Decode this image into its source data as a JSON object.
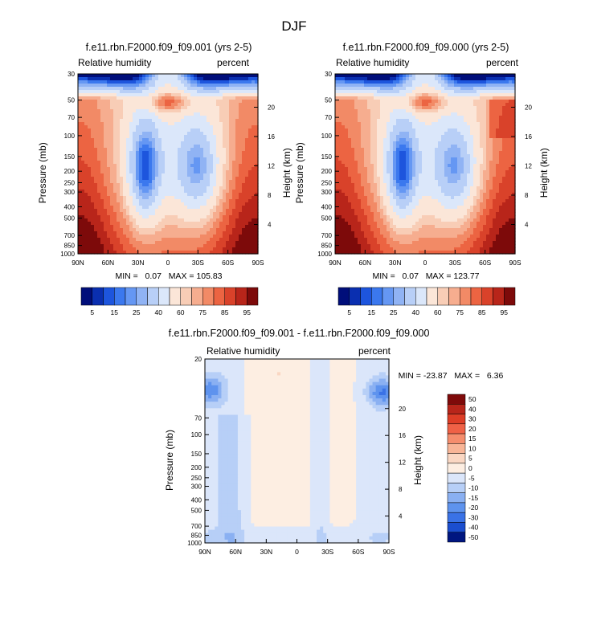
{
  "title": "DJF",
  "chart_data": [
    {
      "type": "heatmap",
      "title": "f.e11.rbn.F2000.f09_f09.001 (yrs 2-5)",
      "left_label": "Relative humidity",
      "right_label": "percent",
      "ylabel": "Pressure (mb)",
      "ylabel_right": "Height (km)",
      "x_ticks": [
        "90N",
        "60N",
        "30N",
        "0",
        "30S",
        "60S",
        "90S"
      ],
      "y_ticks": [
        "30",
        "50",
        "70",
        "100",
        "150",
        "200",
        "250",
        "300",
        "400",
        "500",
        "700",
        "850",
        "1000"
      ],
      "height_ticks": [
        "20",
        "16",
        "12",
        "8",
        "4"
      ],
      "y_scale": "log",
      "ylim": [
        1000,
        30
      ],
      "stats": "MIN =   0.07   MAX = 105.83",
      "colorbar_labels": [
        "5",
        "15",
        "25",
        "40",
        "60",
        "75",
        "85",
        "95"
      ],
      "colorbar_levels": [
        5,
        10,
        15,
        20,
        25,
        30,
        40,
        50,
        60,
        65,
        70,
        75,
        80,
        85,
        90,
        95
      ]
    },
    {
      "type": "heatmap",
      "title": "f.e11.rbn.F2000.f09_f09.000 (yrs 2-5)",
      "left_label": "Relative humidity",
      "right_label": "percent",
      "ylabel": "Pressure (mb)",
      "ylabel_right": "Height (km)",
      "x_ticks": [
        "90N",
        "60N",
        "30N",
        "0",
        "30S",
        "60S",
        "90S"
      ],
      "y_ticks": [
        "30",
        "50",
        "70",
        "100",
        "150",
        "200",
        "250",
        "300",
        "400",
        "500",
        "700",
        "850",
        "1000"
      ],
      "height_ticks": [
        "20",
        "16",
        "12",
        "8",
        "4"
      ],
      "y_scale": "log",
      "ylim": [
        1000,
        30
      ],
      "stats": "MIN =   0.07   MAX = 123.77",
      "colorbar_labels": [
        "5",
        "15",
        "25",
        "40",
        "60",
        "75",
        "85",
        "95"
      ],
      "colorbar_levels": [
        5,
        10,
        15,
        20,
        25,
        30,
        40,
        50,
        60,
        65,
        70,
        75,
        80,
        85,
        90,
        95
      ]
    },
    {
      "type": "heatmap",
      "title": "f.e11.rbn.F2000.f09_f09.001 - f.e11.rbn.F2000.f09_f09.000",
      "left_label": "Relative humidity",
      "right_label": "percent",
      "ylabel": "Pressure (mb)",
      "ylabel_right": "Height (km)",
      "x_ticks": [
        "90N",
        "60N",
        "30N",
        "0",
        "30S",
        "60S",
        "90S"
      ],
      "y_ticks": [
        "20",
        "70",
        "100",
        "150",
        "200",
        "250",
        "300",
        "400",
        "500",
        "700",
        "850",
        "1000"
      ],
      "height_ticks": [
        "20",
        "16",
        "12",
        "8",
        "4"
      ],
      "y_scale": "log",
      "ylim": [
        1000,
        20
      ],
      "stats": "MIN = -23.87   MAX =   6.36",
      "colorbar_labels": [
        "50",
        "40",
        "30",
        "20",
        "15",
        "10",
        "5",
        "0",
        "-5",
        "-10",
        "-15",
        "-20",
        "-30",
        "-40",
        "-50"
      ],
      "colorbar_levels": [
        -50,
        -40,
        -30,
        -20,
        -15,
        -10,
        -5,
        0,
        5,
        10,
        15,
        20,
        30,
        40,
        50
      ]
    }
  ],
  "colors": {
    "rh_palette": [
      "#000e7a",
      "#0a2fb0",
      "#1d55dd",
      "#3b78ee",
      "#6597f3",
      "#90b3f4",
      "#b8cff7",
      "#dbe7fa",
      "#fbe6d8",
      "#f8cdb6",
      "#f6ad8f",
      "#f28a66",
      "#ec6442",
      "#d9422a",
      "#b8251a",
      "#7d0a0a"
    ],
    "diff_palette": [
      "#7f0a0a",
      "#b8251a",
      "#dd3d26",
      "#ef6146",
      "#f58d6d",
      "#f8b597",
      "#fad7c3",
      "#fdeee2",
      "#dbe6fa",
      "#b7cff7",
      "#8ab0f2",
      "#5e93ee",
      "#3a72e6",
      "#1b4ecf",
      "#001680"
    ]
  }
}
